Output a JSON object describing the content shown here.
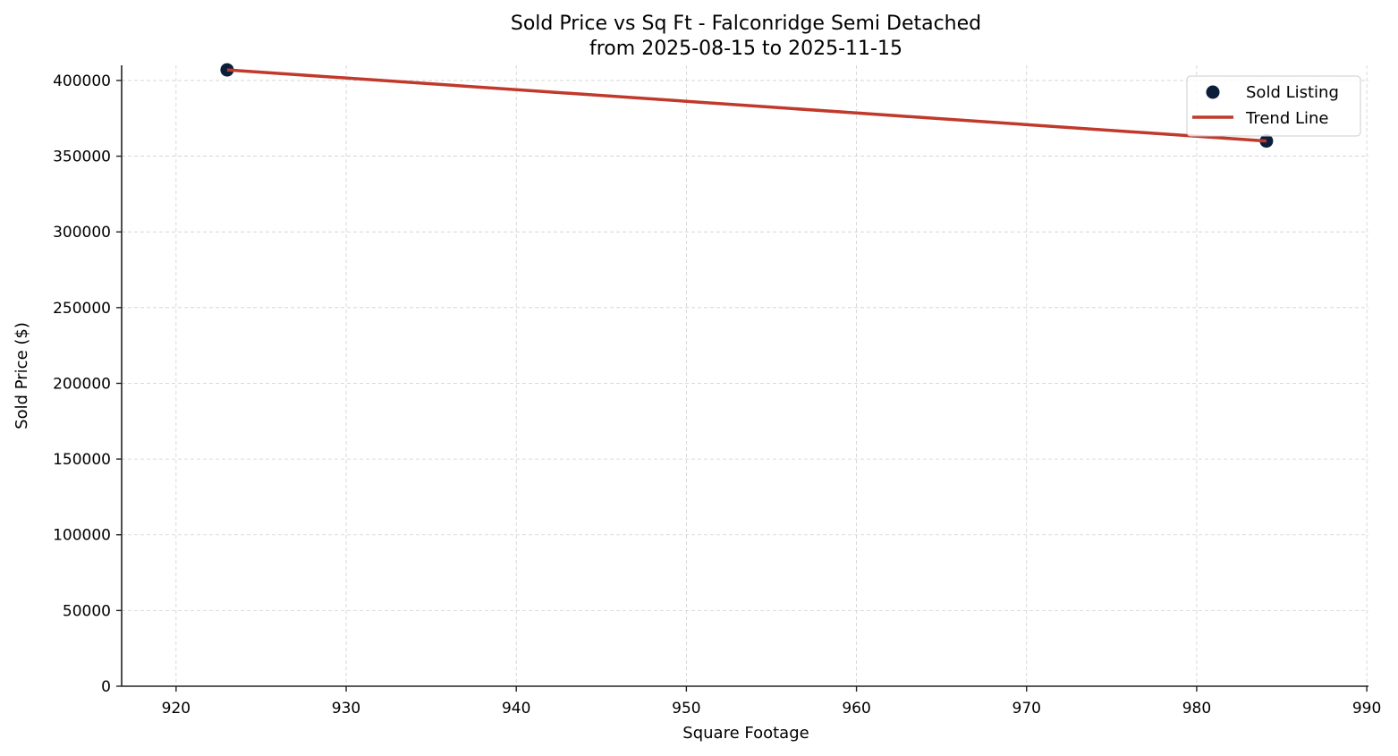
{
  "chart_data": {
    "type": "scatter",
    "title": "Sold Price vs Sq Ft - Falconridge Semi Detached",
    "subtitle": "from 2025-08-15 to 2025-11-15",
    "xlabel": "Square Footage",
    "ylabel": "Sold Price ($)",
    "xlim": [
      916.8,
      990.1
    ],
    "ylim": [
      0,
      410000
    ],
    "xticks": [
      920,
      930,
      940,
      950,
      960,
      970,
      980,
      990
    ],
    "yticks": [
      0,
      50000,
      100000,
      150000,
      200000,
      250000,
      300000,
      350000,
      400000
    ],
    "grid": true,
    "legend_position": "upper right",
    "series": [
      {
        "name": "Sold Listing",
        "kind": "scatter",
        "color": "#0b1f3a",
        "points": [
          {
            "x": 923.0,
            "y": 407000
          },
          {
            "x": 984.1,
            "y": 360000
          }
        ]
      },
      {
        "name": "Trend Line",
        "kind": "line",
        "color": "#c0392b",
        "points": [
          {
            "x": 923.0,
            "y": 407000
          },
          {
            "x": 984.1,
            "y": 360000
          }
        ]
      }
    ]
  }
}
